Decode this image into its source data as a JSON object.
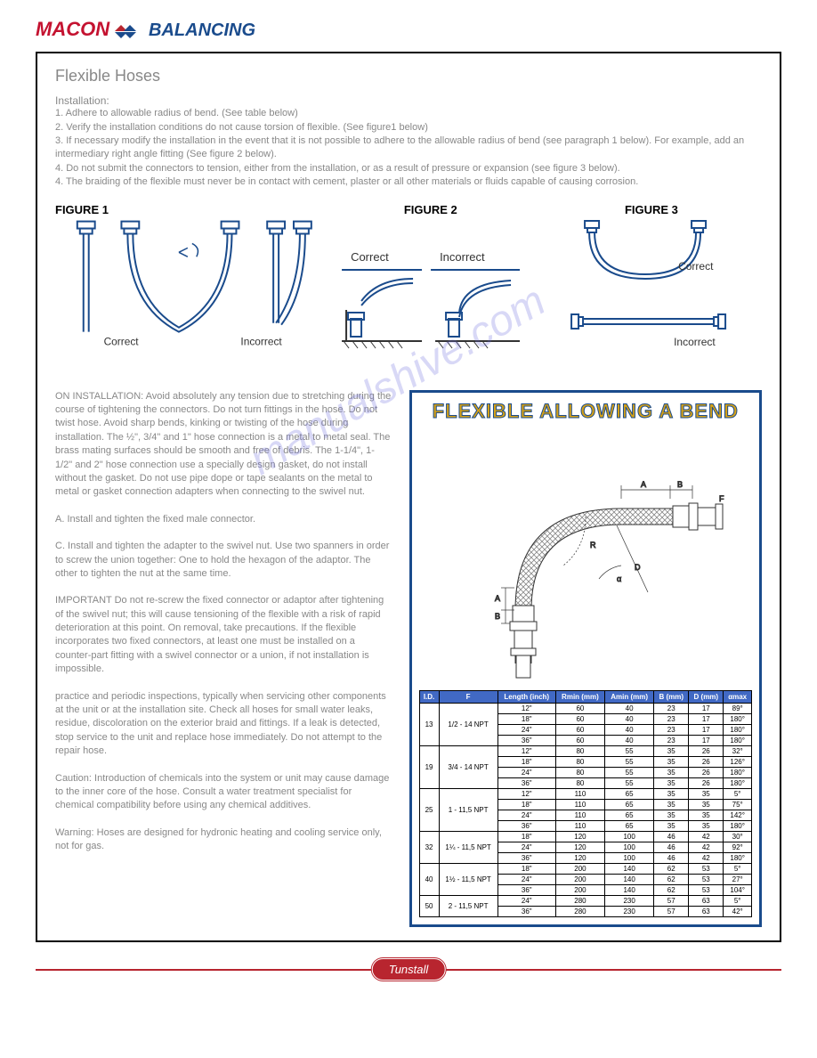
{
  "logo": {
    "brand1": "MACON",
    "brand2": "BALANCING"
  },
  "title": "Flexible Hoses",
  "install_label": "Installation:",
  "install_items": [
    "1. Adhere to allowable radius of bend. (See table below)",
    "2. Verify the installation conditions do not cause torsion of flexible. (See figure1 below)",
    "3. If necessary modify the installation in the event that it is not possible to adhere to the allowable radius of bend (see paragraph 1 below). For example, add an intermediary right angle fitting (See figure 2 below).",
    "4. Do not submit the connectors to tension, either from the installation, or as a result of pressure or expansion (see figure 3 below).",
    "4. The braiding of the flexible must never be in contact with cement, plaster or all other materials or fluids capable of causing corrosion."
  ],
  "figures": {
    "fig1": "FIGURE 1",
    "fig2": "FIGURE 2",
    "fig3": "FIGURE 3",
    "correct": "Correct",
    "incorrect": "Incorrect"
  },
  "paragraphs": {
    "p1": "ON INSTALLATION: Avoid absolutely any tension due to stretching during the course of tightening the connectors. Do not turn fittings in the hose. Do not twist hose. Avoid sharp bends, kinking or twisting of the hose during installation. The ½\", 3/4\" and 1\" hose connection is a metal to metal seal. The brass mating surfaces should be smooth and free of debris. The 1-1/4\", 1-1/2\" and 2\" hose connection use a specially design gasket, do not install without the gasket. Do not use pipe dope or tape sealants on the metal to metal or gasket connection adapters when connecting to the swivel nut.",
    "p2": "A. Install and tighten the fixed male connector.",
    "p3": "C. Install and tighten the adapter to the swivel nut. Use two spanners in order to screw the union together: One to hold the hexagon of the adaptor. The other to tighten the nut at the same time.",
    "p4": "IMPORTANT Do not re-screw the fixed connector or adaptor after tightening of the swivel nut; this will cause tensioning of the flexible with a risk of rapid deterioration at this point. On removal, take precautions. If the flexible incorporates two fixed connectors, at least one must be installed on a counter-part fitting with a swivel connector or a union, if not installation is impossible.",
    "p5": "practice and periodic inspections, typically when servicing other components at the unit or at the installation site. Check all hoses for small water leaks, residue, discoloration on the exterior braid and fittings. If a leak is detected, stop service to the unit and replace hose immediately. Do not attempt to the repair hose.",
    "p6": "Caution: Introduction of chemicals into the system or unit may cause damage to the inner core of the hose. Consult a water treatment specialist for chemical compatibility before using any chemical additives.",
    "p7": "Warning: Hoses are designed for hydronic heating and cooling service only, not for gas."
  },
  "bend_title": "FLEXIBLE ALLOWING A BEND",
  "table": {
    "headers": [
      "I.D.",
      "F",
      "Length (inch)",
      "Rmin (mm)",
      "Amin (mm)",
      "B (mm)",
      "D (mm)",
      "αmax"
    ],
    "groups": [
      {
        "id": "13",
        "f": "1/2 - 14 NPT",
        "rows": [
          [
            "12\"",
            "60",
            "40",
            "23",
            "17",
            "89°"
          ],
          [
            "18\"",
            "60",
            "40",
            "23",
            "17",
            "180°"
          ],
          [
            "24\"",
            "60",
            "40",
            "23",
            "17",
            "180°"
          ],
          [
            "36\"",
            "60",
            "40",
            "23",
            "17",
            "180°"
          ]
        ]
      },
      {
        "id": "19",
        "f": "3/4 - 14 NPT",
        "rows": [
          [
            "12\"",
            "80",
            "55",
            "35",
            "26",
            "32°"
          ],
          [
            "18\"",
            "80",
            "55",
            "35",
            "26",
            "126°"
          ],
          [
            "24\"",
            "80",
            "55",
            "35",
            "26",
            "180°"
          ],
          [
            "36\"",
            "80",
            "55",
            "35",
            "26",
            "180°"
          ]
        ]
      },
      {
        "id": "25",
        "f": "1 - 11,5 NPT",
        "rows": [
          [
            "12\"",
            "110",
            "65",
            "35",
            "35",
            "5°"
          ],
          [
            "18\"",
            "110",
            "65",
            "35",
            "35",
            "75°"
          ],
          [
            "24\"",
            "110",
            "65",
            "35",
            "35",
            "142°"
          ],
          [
            "36\"",
            "110",
            "65",
            "35",
            "35",
            "180°"
          ]
        ]
      },
      {
        "id": "32",
        "f": "1¼ - 11,5 NPT",
        "rows": [
          [
            "18\"",
            "120",
            "100",
            "46",
            "42",
            "30°"
          ],
          [
            "24\"",
            "120",
            "100",
            "46",
            "42",
            "92°"
          ],
          [
            "36\"",
            "120",
            "100",
            "46",
            "42",
            "180°"
          ]
        ]
      },
      {
        "id": "40",
        "f": "1½ - 11,5 NPT",
        "rows": [
          [
            "18\"",
            "200",
            "140",
            "62",
            "53",
            "5°"
          ],
          [
            "24\"",
            "200",
            "140",
            "62",
            "53",
            "27°"
          ],
          [
            "36\"",
            "200",
            "140",
            "62",
            "53",
            "104°"
          ]
        ]
      },
      {
        "id": "50",
        "f": "2 - 11,5 NPT",
        "rows": [
          [
            "24\"",
            "280",
            "230",
            "57",
            "63",
            "5°"
          ],
          [
            "36\"",
            "280",
            "230",
            "57",
            "63",
            "42°"
          ]
        ]
      }
    ]
  },
  "watermark": "manualshive.com",
  "footer": "Tunstall"
}
